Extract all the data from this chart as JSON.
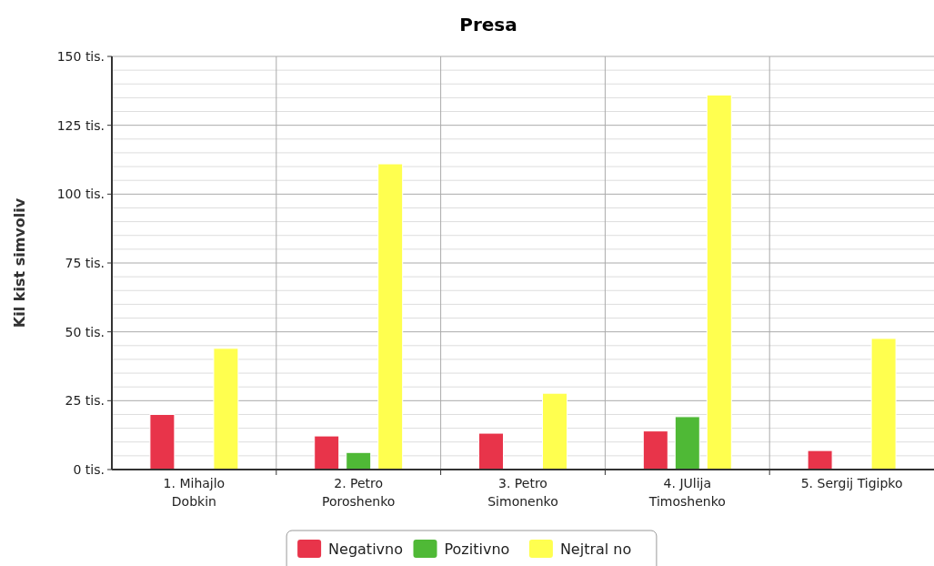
{
  "chart_data": {
    "type": "bar",
    "title": "Presa",
    "ylabel": "Kil kist simvoliv",
    "categories": [
      "1. Mihajlo\nDobkin",
      "2. Petro\nPoroshenko",
      "3. Petro\nSimonenko",
      "4. JUlija\nTimoshenko",
      "5. Sergij Tigipko"
    ],
    "series": [
      {
        "name": "Negativno",
        "color": "#e8344a",
        "values": [
          20,
          12.2,
          13.2,
          14,
          6.9
        ]
      },
      {
        "name": "Pozitivno",
        "color": "#4fb936",
        "values": [
          null,
          6.2,
          null,
          19.2,
          null
        ]
      },
      {
        "name": "Nejtral no",
        "color": "#ffff4f",
        "values": [
          44,
          111,
          27.7,
          136,
          47.6
        ]
      }
    ],
    "ylim": [
      0,
      150
    ],
    "yticks": [
      {
        "value": 0,
        "label": "0 tis."
      },
      {
        "value": 5,
        "label": null
      },
      {
        "value": 10,
        "label": null
      },
      {
        "value": 15,
        "label": null
      },
      {
        "value": 20,
        "label": null
      },
      {
        "value": 25,
        "label": "25 tis."
      },
      {
        "value": 30,
        "label": null
      },
      {
        "value": 35,
        "label": null
      },
      {
        "value": 40,
        "label": null
      },
      {
        "value": 45,
        "label": null
      },
      {
        "value": 50,
        "label": "50 tis."
      },
      {
        "value": 55,
        "label": null
      },
      {
        "value": 60,
        "label": null
      },
      {
        "value": 65,
        "label": null
      },
      {
        "value": 70,
        "label": null
      },
      {
        "value": 75,
        "label": "75 tis."
      },
      {
        "value": 80,
        "label": null
      },
      {
        "value": 85,
        "label": null
      },
      {
        "value": 90,
        "label": null
      },
      {
        "value": 95,
        "label": null
      },
      {
        "value": 100,
        "label": "100 tis."
      },
      {
        "value": 105,
        "label": null
      },
      {
        "value": 110,
        "label": null
      },
      {
        "value": 115,
        "label": null
      },
      {
        "value": 120,
        "label": null
      },
      {
        "value": 125,
        "label": "125 tis."
      },
      {
        "value": 130,
        "label": null
      },
      {
        "value": 135,
        "label": null
      },
      {
        "value": 140,
        "label": null
      },
      {
        "value": 145,
        "label": null
      },
      {
        "value": 150,
        "label": "150 tis."
      }
    ],
    "grid": true,
    "legend": "bottom"
  }
}
